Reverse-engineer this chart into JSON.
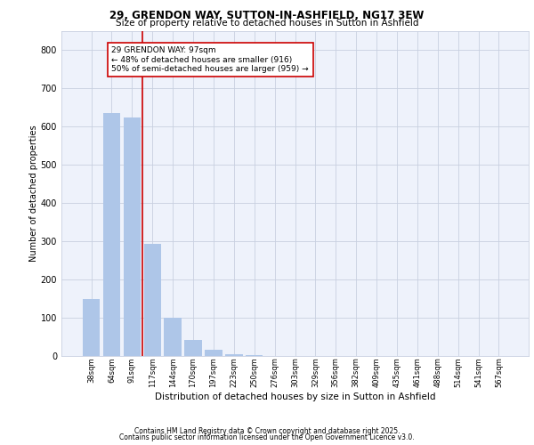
{
  "title1": "29, GRENDON WAY, SUTTON-IN-ASHFIELD, NG17 3EW",
  "title2": "Size of property relative to detached houses in Sutton in Ashfield",
  "xlabel": "Distribution of detached houses by size in Sutton in Ashfield",
  "ylabel": "Number of detached properties",
  "categories": [
    "38sqm",
    "64sqm",
    "91sqm",
    "117sqm",
    "144sqm",
    "170sqm",
    "197sqm",
    "223sqm",
    "250sqm",
    "276sqm",
    "303sqm",
    "329sqm",
    "356sqm",
    "382sqm",
    "409sqm",
    "435sqm",
    "461sqm",
    "488sqm",
    "514sqm",
    "541sqm",
    "567sqm"
  ],
  "values": [
    150,
    635,
    625,
    293,
    100,
    43,
    16,
    5,
    2,
    1,
    1,
    0,
    0,
    0,
    0,
    0,
    0,
    0,
    0,
    0,
    0
  ],
  "bar_color": "#aec6e8",
  "vline_x": 2.5,
  "vline_color": "#cc0000",
  "annotation_text": "29 GRENDON WAY: 97sqm\n← 48% of detached houses are smaller (916)\n50% of semi-detached houses are larger (959) →",
  "annotation_box_color": "#cc0000",
  "ylim": [
    0,
    850
  ],
  "yticks": [
    0,
    100,
    200,
    300,
    400,
    500,
    600,
    700,
    800
  ],
  "footer1": "Contains HM Land Registry data © Crown copyright and database right 2025.",
  "footer2": "Contains public sector information licensed under the Open Government Licence v3.0.",
  "bg_color": "#eef2fb",
  "grid_color": "#c8d0e0"
}
